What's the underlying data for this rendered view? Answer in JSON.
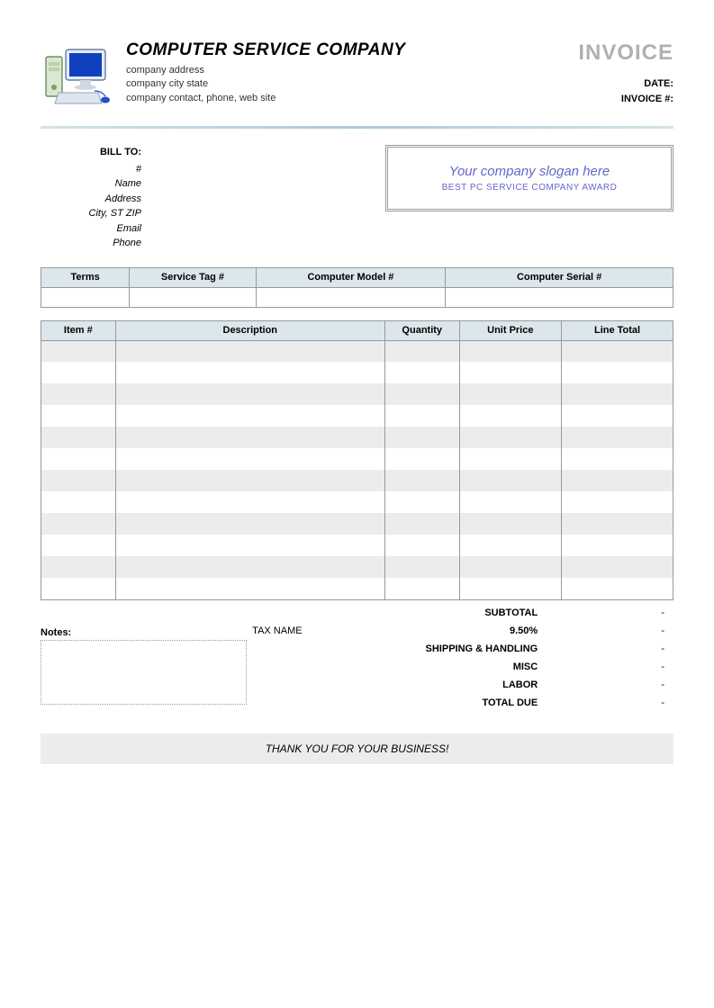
{
  "header": {
    "company_name": "COMPUTER SERVICE COMPANY",
    "address": "company address",
    "city_state": "company city state",
    "contact": "company contact, phone, web site",
    "invoice_title": "INVOICE",
    "date_label": "DATE:",
    "invoice_num_label": "INVOICE #:"
  },
  "billto": {
    "label": "BILL TO:",
    "fields": {
      "num": "#",
      "name": "Name",
      "address": "Address",
      "city": "City, ST ZIP",
      "email": "Email",
      "phone": "Phone"
    }
  },
  "slogan": {
    "main": "Your company slogan here",
    "sub": "BEST PC SERVICE COMPANY AWARD"
  },
  "meta_table": {
    "headers": [
      "Terms",
      "Service Tag #",
      "Computer Model #",
      "Computer Serial #"
    ],
    "widths": [
      "14%",
      "20%",
      "30%",
      "36%"
    ]
  },
  "items_table": {
    "headers": [
      "Item #",
      "Description",
      "Quantity",
      "Unit Price",
      "Line Total"
    ],
    "row_count": 12,
    "stripe_odd": "#ececec",
    "stripe_even": "#ffffff",
    "header_bg": "#dce7ec",
    "border_color": "#999999"
  },
  "notes_label": "Notes:",
  "totals": {
    "subtotal_label": "SUBTOTAL",
    "tax_label": "TAX NAME",
    "tax_rate": "9.50%",
    "shipping_label": "SHIPPING & HANDLING",
    "misc_label": "MISC",
    "labor_label": "LABOR",
    "due_label": "TOTAL DUE",
    "dash": "-"
  },
  "thanks": "THANK YOU FOR YOUR BUSINESS!",
  "colors": {
    "invoice_title": "#b0b0b0",
    "slogan": "#6666cc",
    "divider_mid": "#a8cad8"
  }
}
